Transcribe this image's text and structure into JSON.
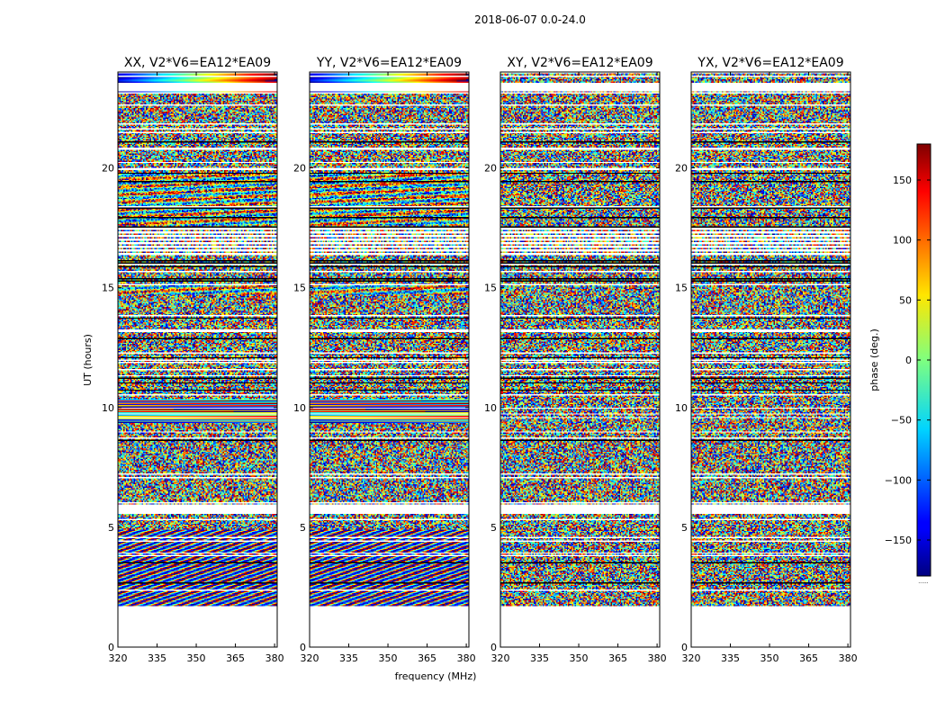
{
  "figure": {
    "suptitle": "2018-06-07 0.0-24.0",
    "xlabel": "frequency (MHz)",
    "ylabel": "UT (hours)",
    "colorbar_label": "phase (deg.)",
    "colorbar_footer": "......"
  },
  "chart_data": {
    "type": "heatmap",
    "colormap": "jet",
    "colors": {
      "low": "#00007f",
      "mid": "#7fff7f",
      "high": "#7f0000",
      "flagged": "#ffffff"
    },
    "color_range": [
      -180,
      180
    ],
    "colorbar_ticks": [
      150,
      100,
      50,
      0,
      -50,
      -100,
      -150
    ],
    "colorbar_tick_labels": [
      "150",
      "100",
      "50",
      "0",
      "−50",
      "−100",
      "−150"
    ],
    "xlim": [
      320,
      381
    ],
    "x_ticks": [
      320,
      335,
      350,
      365,
      380
    ],
    "x_tick_labels": [
      "320",
      "335",
      "350",
      "365",
      "380"
    ],
    "ylim": [
      0,
      24
    ],
    "y_ticks": [
      0,
      5,
      10,
      15,
      20
    ],
    "y_tick_labels": [
      "0",
      "5",
      "10",
      "15",
      "20"
    ],
    "panels": [
      {
        "title": "XX, V2*V6=EA12*EA09",
        "polarization": "XX"
      },
      {
        "title": "YY, V2*V6=EA12*EA09",
        "polarization": "YY"
      },
      {
        "title": "XY, V2*V6=EA12*EA09",
        "polarization": "XY"
      },
      {
        "title": "YX, V2*V6=EA12*EA09",
        "polarization": "YX"
      }
    ]
  }
}
